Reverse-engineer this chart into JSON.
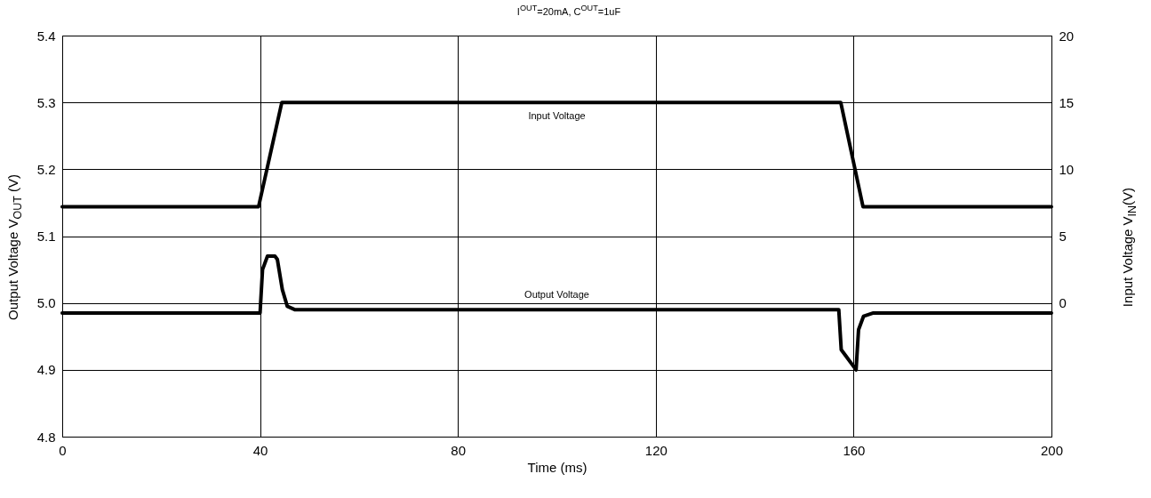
{
  "chart_data": {
    "type": "line",
    "title": "I$^{OUT}$=20mA, C$^{OUT}$=1uF",
    "xlabel": "Time (ms)",
    "ylabel": "Output Voltage V$_{OUT}$ (V)",
    "y2label": "Input Voltage V$_{IN}$(V)",
    "xlim": [
      0,
      200
    ],
    "xticks": [
      0,
      40,
      80,
      120,
      160,
      200
    ],
    "ylim": [
      4.8,
      5.4
    ],
    "yticks": [
      4.8,
      4.9,
      {
        "value": 5,
        "label": "5.0"
      },
      5.1,
      5.2,
      5.3,
      5.4
    ],
    "y2lim": [
      -10,
      20
    ],
    "y2ticks": [
      0,
      5,
      10,
      15,
      20
    ],
    "grid": true,
    "legend": false,
    "series": [
      {
        "name": "Input Voltage",
        "color": "#000000",
        "axis": "y2",
        "x": [
          0,
          39.7,
          44.4,
          157.4,
          161.9,
          200
        ],
        "values": [
          7.2,
          7.2,
          15,
          15,
          7.2,
          7.2
        ]
      },
      {
        "name": "Output Voltage",
        "color": "#000000",
        "x": [
          0,
          40,
          40.5,
          41.5,
          43,
          43.5,
          44.5,
          45.5,
          47,
          157,
          157.5,
          158.5,
          160,
          160.5,
          161,
          162,
          164,
          200
        ],
        "values": [
          4.985,
          4.985,
          5.05,
          5.07,
          5.07,
          5.065,
          5.02,
          4.995,
          4.99,
          4.99,
          4.93,
          4.92,
          4.905,
          4.9,
          4.96,
          4.98,
          4.985,
          4.985
        ]
      }
    ]
  }
}
